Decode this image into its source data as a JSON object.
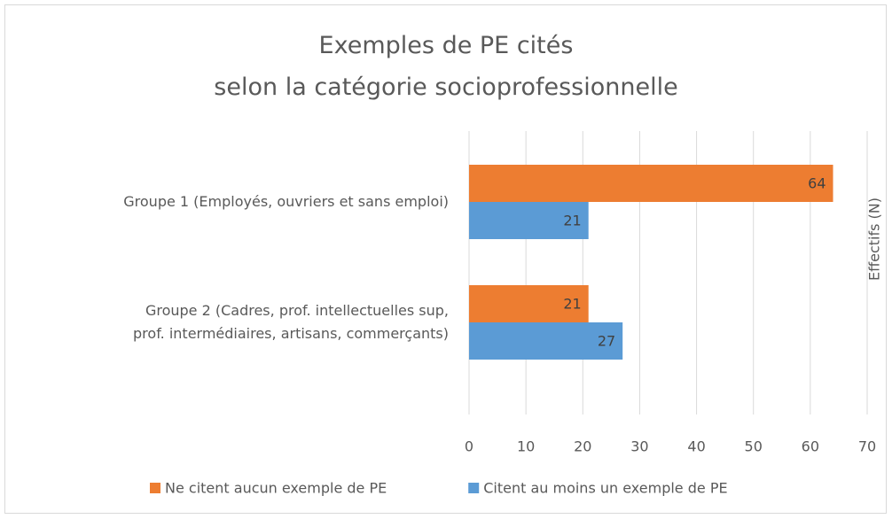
{
  "chart_data": {
    "type": "hbar",
    "title": "Exemples de PE cités\nselon la catégorie socioprofessionnelle",
    "categories": [
      "Groupe 1 (Employés, ouvriers et sans emploi)",
      "Groupe 2 (Cadres, prof. intellectuelles sup,\nprof. intermédiaires, artisans, commerçants)"
    ],
    "series": [
      {
        "name": "Ne citent aucun exemple de PE",
        "color": "#ed7d31",
        "values": [
          64,
          21
        ]
      },
      {
        "name": "Citent au moins un exemple de PE",
        "color": "#5b9bd5",
        "values": [
          21,
          27
        ]
      }
    ],
    "xlabel": "Effectifs (N)",
    "xlim": [
      0,
      70
    ],
    "xticks": [
      0,
      10,
      20,
      30,
      40,
      50,
      60,
      70
    ],
    "grid": true,
    "legend": "bottom"
  }
}
